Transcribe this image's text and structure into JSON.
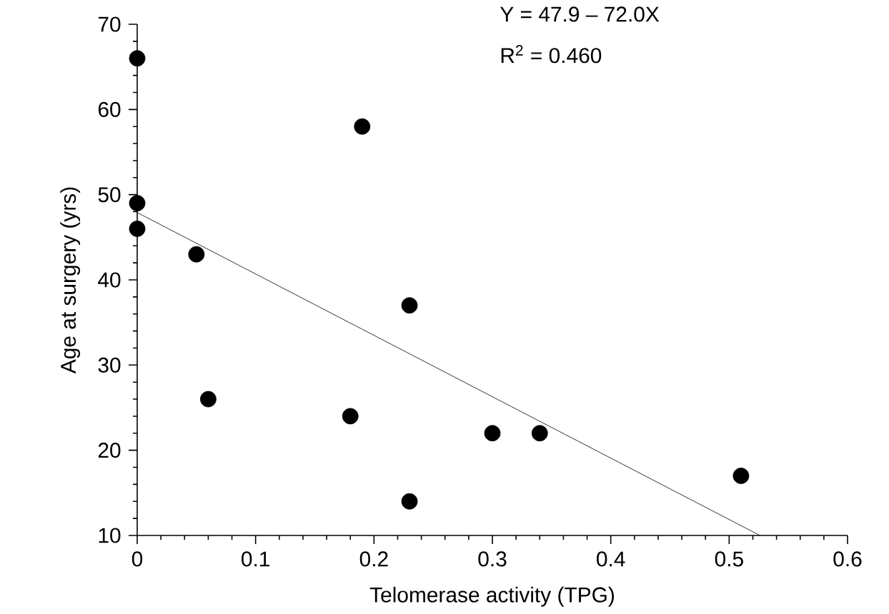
{
  "chart_data": {
    "type": "scatter",
    "xlabel": "Telomerase activity (TPG)",
    "ylabel": "Age at surgery (yrs)",
    "annotations": [
      "Y = 47.9 – 72.0X",
      "R$^{2}$ = 0.460"
    ],
    "marker": "circle",
    "xlim": [
      0,
      0.6
    ],
    "xticks": [
      0,
      0.1,
      0.2,
      0.3,
      0.4,
      0.5,
      0.6
    ],
    "ylim": [
      10,
      70
    ],
    "yticks": [
      10,
      20,
      30,
      40,
      50,
      60,
      70
    ],
    "series": [
      {
        "color": "#000000",
        "x": [
          0,
          0,
          0,
          0.05,
          0.06,
          0.18,
          0.19,
          0.23,
          0.23,
          0.3,
          0.34,
          0.51
        ],
        "values": [
          66,
          49,
          46,
          43,
          26,
          24,
          58,
          37,
          14,
          22,
          22,
          17
        ]
      },
      {
        "type": "line",
        "color": "#000000",
        "marker": "none",
        "x": [
          0,
          0.526
        ],
        "values": [
          47.9,
          10.0
        ]
      }
    ]
  }
}
